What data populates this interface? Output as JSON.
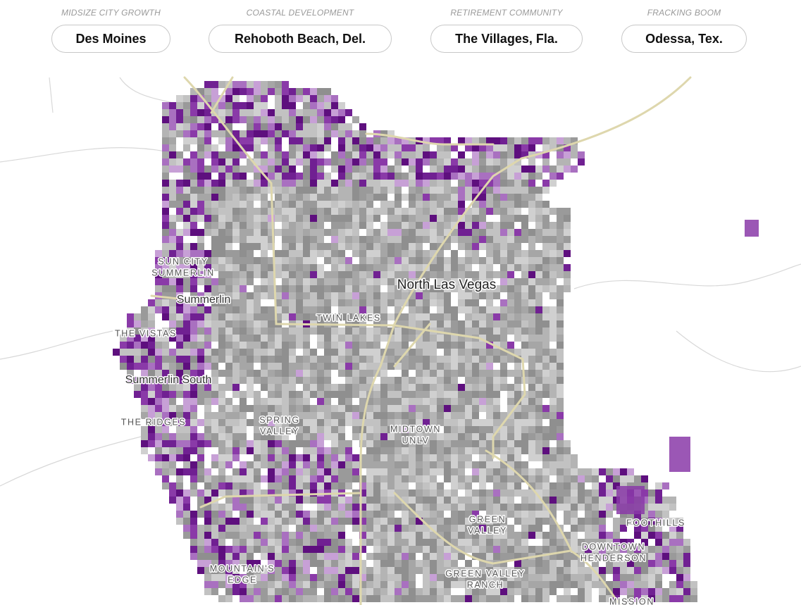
{
  "tabs": [
    {
      "category": "MIDSIZE CITY GROWTH",
      "label": "Des Moines"
    },
    {
      "category": "COASTAL DEVELOPMENT",
      "label": "Rehoboth Beach, Del."
    },
    {
      "category": "RETIREMENT COMMUNITY",
      "label": "The Villages, Fla."
    },
    {
      "category": "FRACKING BOOM",
      "label": "Odessa, Tex."
    }
  ],
  "map": {
    "labels": [
      {
        "lines": [
          "North Las Vegas"
        ]
      },
      {
        "lines": [
          "Summerlin"
        ]
      },
      {
        "lines": [
          "Summerlin South"
        ]
      },
      {
        "lines": [
          "SUN CITY",
          "SUMMERLIN"
        ]
      },
      {
        "lines": [
          "TWIN LAKES"
        ]
      },
      {
        "lines": [
          "THE VISTAS"
        ]
      },
      {
        "lines": [
          "THE RIDGES"
        ]
      },
      {
        "lines": [
          "SPRING",
          "VALLEY"
        ]
      },
      {
        "lines": [
          "MIDTOWN",
          "UNLV"
        ]
      },
      {
        "lines": [
          "GREEN",
          "VALLEY"
        ]
      },
      {
        "lines": [
          "FOOTHILLS"
        ]
      },
      {
        "lines": [
          "DOWNTOWN",
          "HENDERSON"
        ]
      },
      {
        "lines": [
          "MOUNTAIN'S",
          "EDGE"
        ]
      },
      {
        "lines": [
          "GREEN VALLEY",
          "RANCH"
        ]
      },
      {
        "lines": [
          "MISSION"
        ]
      }
    ]
  }
}
